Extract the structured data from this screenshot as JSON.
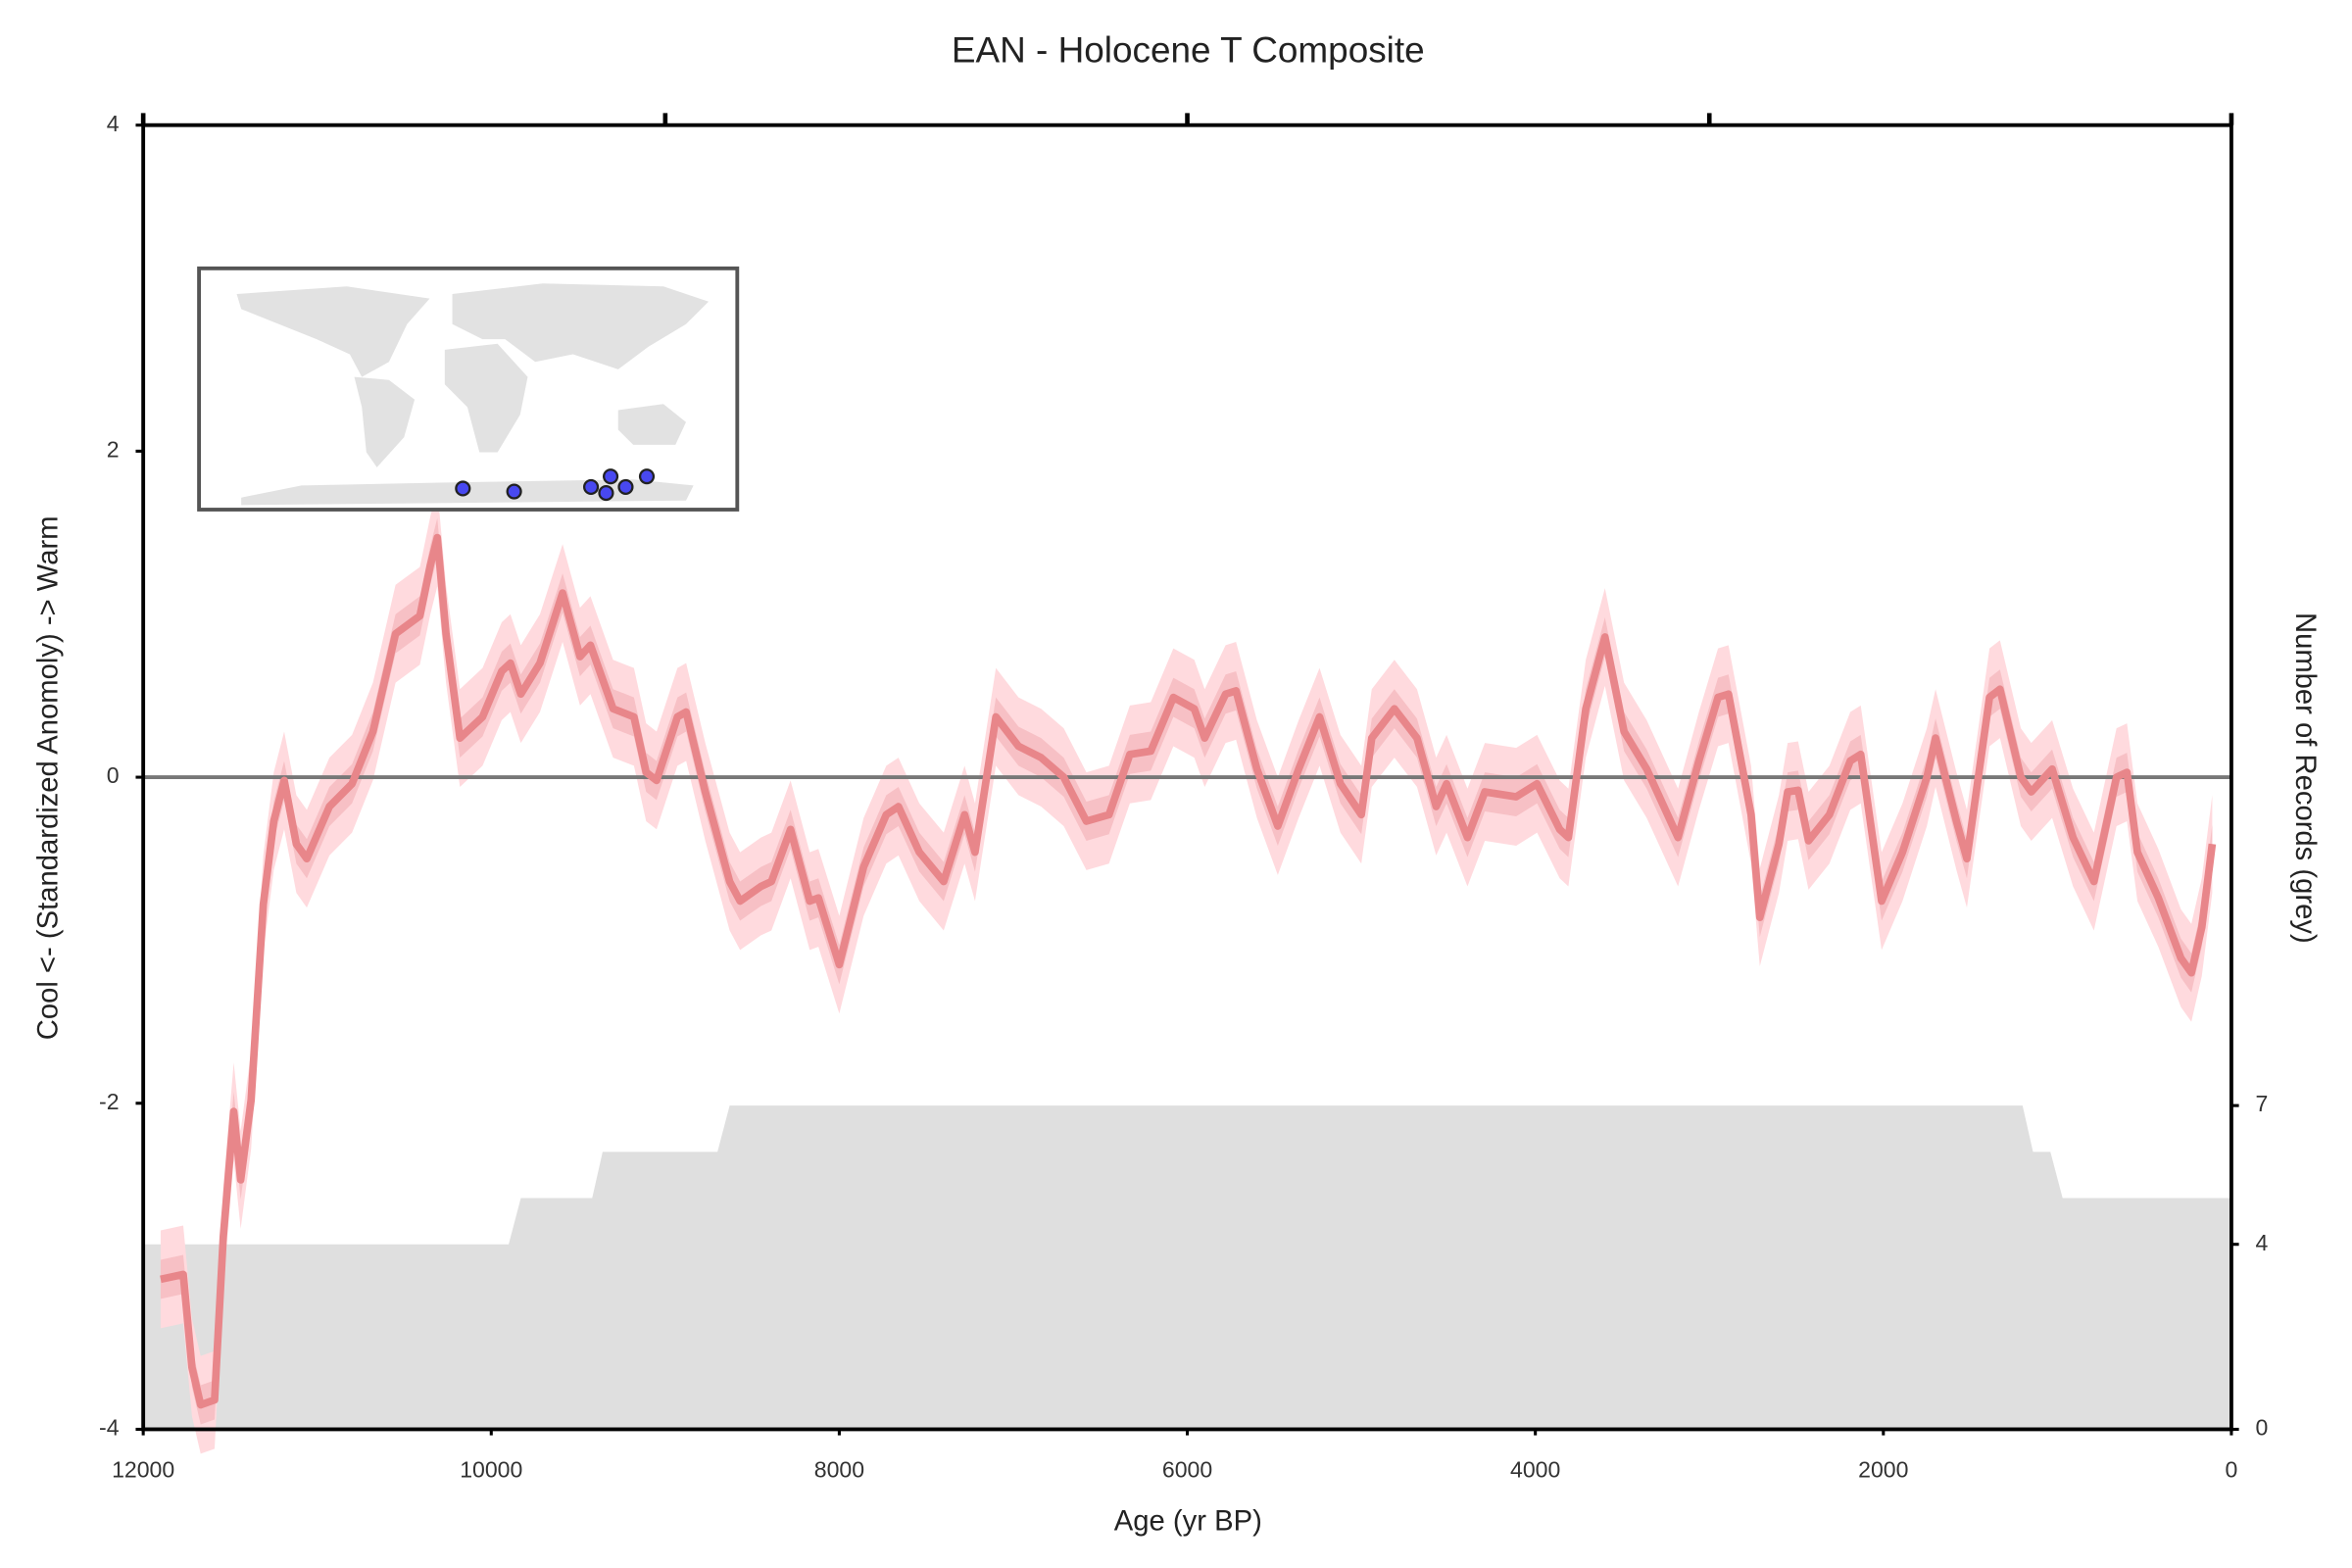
{
  "chart_data": {
    "type": "line",
    "title": "EAN - Holocene T Composite",
    "x_label": "Age (yr BP)",
    "y_label": "Cool <- (Standardized Anomoly) -> Warm",
    "y2_label": "Number of Records (grey)",
    "xlim": [
      12000,
      0
    ],
    "xticks": [
      12000,
      10000,
      8000,
      6000,
      4000,
      2000,
      0
    ],
    "top_xticks": [
      12000,
      9000,
      6000,
      3000,
      0
    ],
    "ylim": [
      -4,
      4
    ],
    "yticks": [
      -4,
      -2,
      0,
      2,
      4
    ],
    "y2lim": [
      0,
      28.2
    ],
    "y2ticks": [
      0,
      4,
      7
    ],
    "hline": 0,
    "bands": [
      {
        "halfwidth": 0.3,
        "color": "#ffdade"
      },
      {
        "halfwidth": 0.12,
        "color": "#f7c0c5"
      }
    ],
    "series": [
      {
        "color": "#e8868a",
        "x": [
          11900,
          11770,
          11720,
          11670,
          11590,
          11540,
          11480,
          11440,
          11380,
          11310,
          11250,
          11190,
          11120,
          11060,
          10930,
          10800,
          10680,
          10550,
          10410,
          10350,
          10310,
          10260,
          10180,
          10050,
          9940,
          9890,
          9830,
          9720,
          9590,
          9490,
          9430,
          9300,
          9180,
          9110,
          9050,
          8930,
          8880,
          8770,
          8630,
          8570,
          8450,
          8390,
          8280,
          8170,
          8120,
          8000,
          7860,
          7730,
          7660,
          7540,
          7400,
          7280,
          7220,
          7100,
          6970,
          6840,
          6710,
          6580,
          6450,
          6330,
          6210,
          6080,
          5960,
          5900,
          5780,
          5720,
          5600,
          5480,
          5360,
          5240,
          5120,
          5000,
          4940,
          4810,
          4680,
          4570,
          4510,
          4390,
          4290,
          4110,
          3990,
          3860,
          3810,
          3710,
          3600,
          3490,
          3360,
          3180,
          3060,
          2950,
          2890,
          2760,
          2710,
          2600,
          2550,
          2490,
          2430,
          2310,
          2190,
          2130,
          2010,
          1890,
          1750,
          1700,
          1580,
          1520,
          1390,
          1330,
          1210,
          1150,
          1030,
          910,
          790,
          660,
          600,
          540,
          420,
          290,
          230,
          170,
          110
        ],
        "values": [
          -3.08,
          -3.05,
          -3.62,
          -3.85,
          -3.82,
          -2.82,
          -2.05,
          -2.47,
          -1.98,
          -0.78,
          -0.27,
          -0.02,
          -0.41,
          -0.5,
          -0.18,
          -0.04,
          0.28,
          0.88,
          0.99,
          1.3,
          1.47,
          0.88,
          0.24,
          0.37,
          0.65,
          0.7,
          0.51,
          0.7,
          1.13,
          0.74,
          0.81,
          0.42,
          0.37,
          0.03,
          -0.02,
          0.37,
          0.4,
          -0.09,
          -0.64,
          -0.76,
          -0.67,
          -0.64,
          -0.32,
          -0.76,
          -0.74,
          -1.15,
          -0.55,
          -0.23,
          -0.18,
          -0.46,
          -0.64,
          -0.23,
          -0.46,
          0.37,
          0.19,
          0.12,
          0,
          -0.27,
          -0.23,
          0.14,
          0.16,
          0.49,
          0.42,
          0.24,
          0.51,
          0.53,
          0.05,
          -0.3,
          0.05,
          0.37,
          -0.04,
          -0.23,
          0.24,
          0.42,
          0.24,
          -0.18,
          -0.04,
          -0.37,
          -0.09,
          -0.12,
          -0.04,
          -0.32,
          -0.37,
          0.42,
          0.86,
          0.28,
          0.05,
          -0.37,
          0.1,
          0.49,
          0.51,
          -0.23,
          -0.86,
          -0.41,
          -0.09,
          -0.08,
          -0.39,
          -0.23,
          0.1,
          0.14,
          -0.76,
          -0.46,
          0,
          0.24,
          -0.27,
          -0.5,
          0.49,
          0.54,
          0,
          -0.09,
          0.05,
          -0.37,
          -0.64,
          0,
          0.03,
          -0.46,
          -0.74,
          -1.11,
          -1.2,
          -0.92,
          -0.41
        ]
      },
      {
        "color": "#dfdfdf",
        "axis": "y2",
        "x": [
          12000,
          9900,
          9830,
          9420,
          9360,
          8700,
          8630,
          1200,
          1140,
          1040,
          970,
          0
        ],
        "values": [
          4,
          4,
          5,
          5,
          6,
          6,
          7,
          7,
          6,
          6,
          5,
          5
        ]
      }
    ]
  }
}
